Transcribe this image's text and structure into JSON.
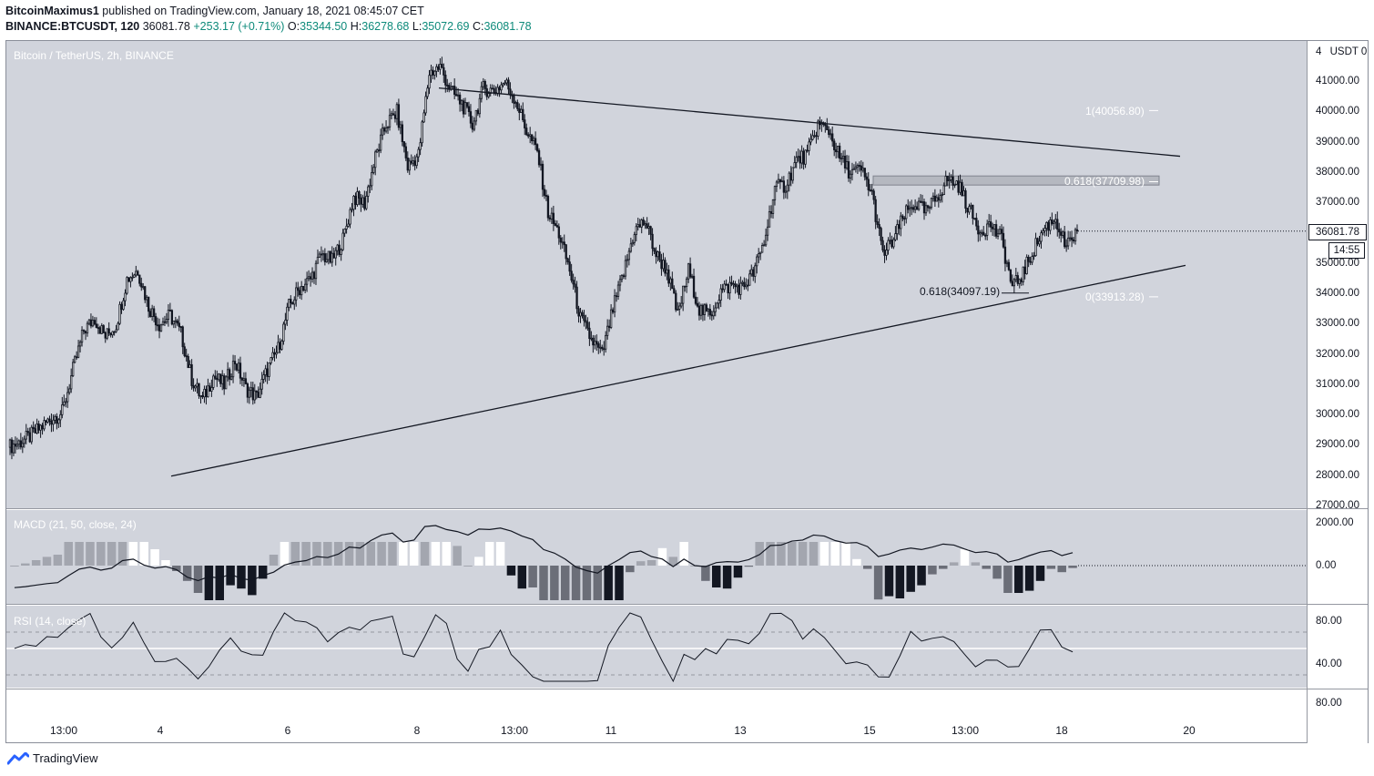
{
  "header": {
    "author": "BitcoinMaximus1",
    "published_text": "published on TradingView.com, January 18, 2021 08:45:07 CET",
    "symbol": "BINANCE:BTCUSDT, 120",
    "last": "36081.78",
    "change": "+253.17 (+0.71%)",
    "o_label": "O:",
    "o_value": "35344.50",
    "h_label": "H:",
    "h_value": "36278.68",
    "l_label": "L:",
    "l_value": "35072.69",
    "c_label": "C:",
    "c_value": "36081.78"
  },
  "pane_title": "Bitcoin / TetherUS, 2h, BINANCE",
  "macd_title": "MACD (21, 50, close, 24)",
  "rsi_title": "RSI (14, close)",
  "price_axis": {
    "currency": "USDT",
    "ticks": [
      "41000.00",
      "40000.00",
      "39000.00",
      "38000.00",
      "37000.00",
      "36000.00",
      "35000.00",
      "34000.00",
      "33000.00",
      "32000.00",
      "31000.00",
      "30000.00",
      "29000.00",
      "28000.00",
      "27000.00"
    ],
    "top_partial": "4",
    "currency_suffix": "0",
    "last_price_tag": "36081.78",
    "countdown_tag": "14:55"
  },
  "macd_axis": [
    "2000.00",
    "0.00"
  ],
  "rsi_axis": [
    "80.00",
    "40.00",
    "80.00"
  ],
  "time_axis": [
    "13:00",
    "4",
    "6",
    "8",
    "13:00",
    "11",
    "13",
    "15",
    "13:00",
    "18",
    "20"
  ],
  "fib_labels": {
    "fib1": "1(40056.80)",
    "fib0618_top": "0.618(37709.98)",
    "fib0618_bottom": "0.618(34097.19)",
    "fib0": "0(33913.28)"
  },
  "brand": "TradingView",
  "colors": {
    "background": "#d1d4dc",
    "bull_candle": "#ffffff",
    "bear_candle": "#131722",
    "line": "#131722"
  },
  "chart_data": {
    "type": "candlestick",
    "title": "Bitcoin / TetherUS, 2h, BINANCE",
    "ylim": [
      27000,
      42000
    ],
    "x_ticks": [
      "13:00",
      "4",
      "6",
      "8",
      "13:00",
      "11",
      "13",
      "15",
      "13:00",
      "18",
      "20"
    ],
    "close_path_approx": [
      29100,
      29300,
      29600,
      29900,
      30100,
      31500,
      32800,
      33200,
      32600,
      33000,
      34500,
      34800,
      33600,
      33000,
      33300,
      32700,
      31200,
      30500,
      31300,
      31000,
      31800,
      30900,
      30600,
      31500,
      32200,
      33600,
      34200,
      34500,
      35300,
      35100,
      35800,
      37200,
      37000,
      38500,
      39600,
      40000,
      38200,
      38600,
      41300,
      41500,
      40700,
      40300,
      39600,
      40800,
      40700,
      41000,
      40400,
      39400,
      38700,
      36700,
      36000,
      34800,
      33200,
      32500,
      32000,
      33500,
      34700,
      36100,
      36400,
      35300,
      34800,
      33300,
      34800,
      33500,
      33300,
      34100,
      34300,
      34200,
      34700,
      35700,
      37500,
      37600,
      38400,
      38600,
      39600,
      39400,
      38500,
      38000,
      38100,
      37300,
      35300,
      35800,
      36600,
      37000,
      36700,
      37200,
      37800,
      37600,
      36800,
      36100,
      36300,
      35800,
      34200,
      34700,
      35500,
      36200,
      36500,
      35500,
      36081.78
    ],
    "trendlines": [
      {
        "name": "descending resistance",
        "points": [
          [
            40800,
            "start"
          ],
          [
            38550,
            "end"
          ]
        ]
      },
      {
        "name": "ascending support",
        "points": [
          [
            28000,
            "start"
          ],
          [
            34950,
            "end"
          ]
        ]
      }
    ],
    "fib_levels": [
      {
        "label": "1",
        "value": 40056.8
      },
      {
        "label": "0.618",
        "value": 37709.98
      },
      {
        "label": "0.618",
        "value": 34097.19
      },
      {
        "label": "0",
        "value": 33913.28
      }
    ],
    "resistance_zone": [
      37600,
      37900
    ],
    "macd": {
      "params": "21, 50, close, 24",
      "range": [
        -1200,
        2500
      ],
      "ticks": [
        2000,
        0
      ]
    },
    "rsi": {
      "params": "14, close",
      "levels": [
        70,
        50,
        30
      ],
      "ticks": [
        80,
        40
      ]
    }
  }
}
